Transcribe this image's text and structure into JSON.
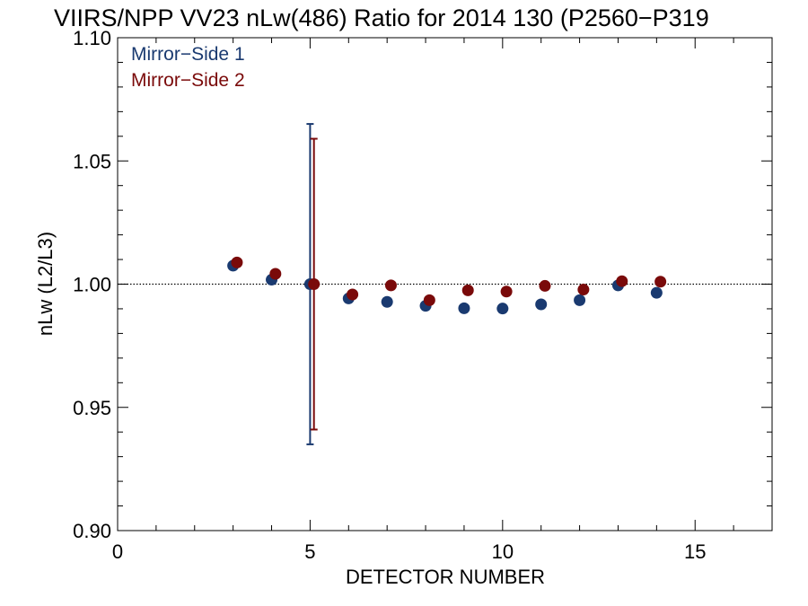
{
  "chart_data": {
    "type": "scatter",
    "title": "VIIRS/NPP VV23 nLw(486) Ratio for 2014 130 (P2560−P319",
    "xlabel": "DETECTOR NUMBER",
    "ylabel": "nLw (L2/L3)",
    "xlim": [
      0,
      17
    ],
    "ylim": [
      0.9,
      1.1
    ],
    "xticks": [
      0,
      5,
      10,
      15
    ],
    "xtick_labels": [
      "0",
      "5",
      "10",
      "15"
    ],
    "yticks": [
      0.9,
      0.95,
      1.0,
      1.05,
      1.1
    ],
    "ytick_labels": [
      "0.90",
      "0.95",
      "1.00",
      "1.05",
      "1.10"
    ],
    "reference_line": 1.0,
    "grid": false,
    "legend_position": "top-left",
    "series": [
      {
        "name": "Mirror−Side 1",
        "color": "#1a3a70",
        "x": [
          3,
          4,
          5,
          6,
          7,
          8,
          9,
          10,
          11,
          12,
          13,
          14
        ],
        "y": [
          1.0075,
          1.0018,
          1.0,
          0.9942,
          0.9928,
          0.9912,
          0.9902,
          0.9901,
          0.9918,
          0.9935,
          0.9995,
          0.9965
        ],
        "error_bars": [
          {
            "x": 5,
            "low": 0.935,
            "high": 1.065
          }
        ]
      },
      {
        "name": "Mirror−Side 2",
        "color": "#7a0a0a",
        "x": [
          3.1,
          4.1,
          5.1,
          6.1,
          7.1,
          8.1,
          9.1,
          10.1,
          11.1,
          12.1,
          13.1,
          14.1
        ],
        "y": [
          1.0088,
          1.0042,
          1.0,
          0.9958,
          0.9995,
          0.9935,
          0.9975,
          0.997,
          0.9993,
          0.9978,
          1.0012,
          1.001
        ],
        "error_bars": [
          {
            "x": 5.1,
            "low": 0.941,
            "high": 1.059
          }
        ]
      }
    ]
  }
}
